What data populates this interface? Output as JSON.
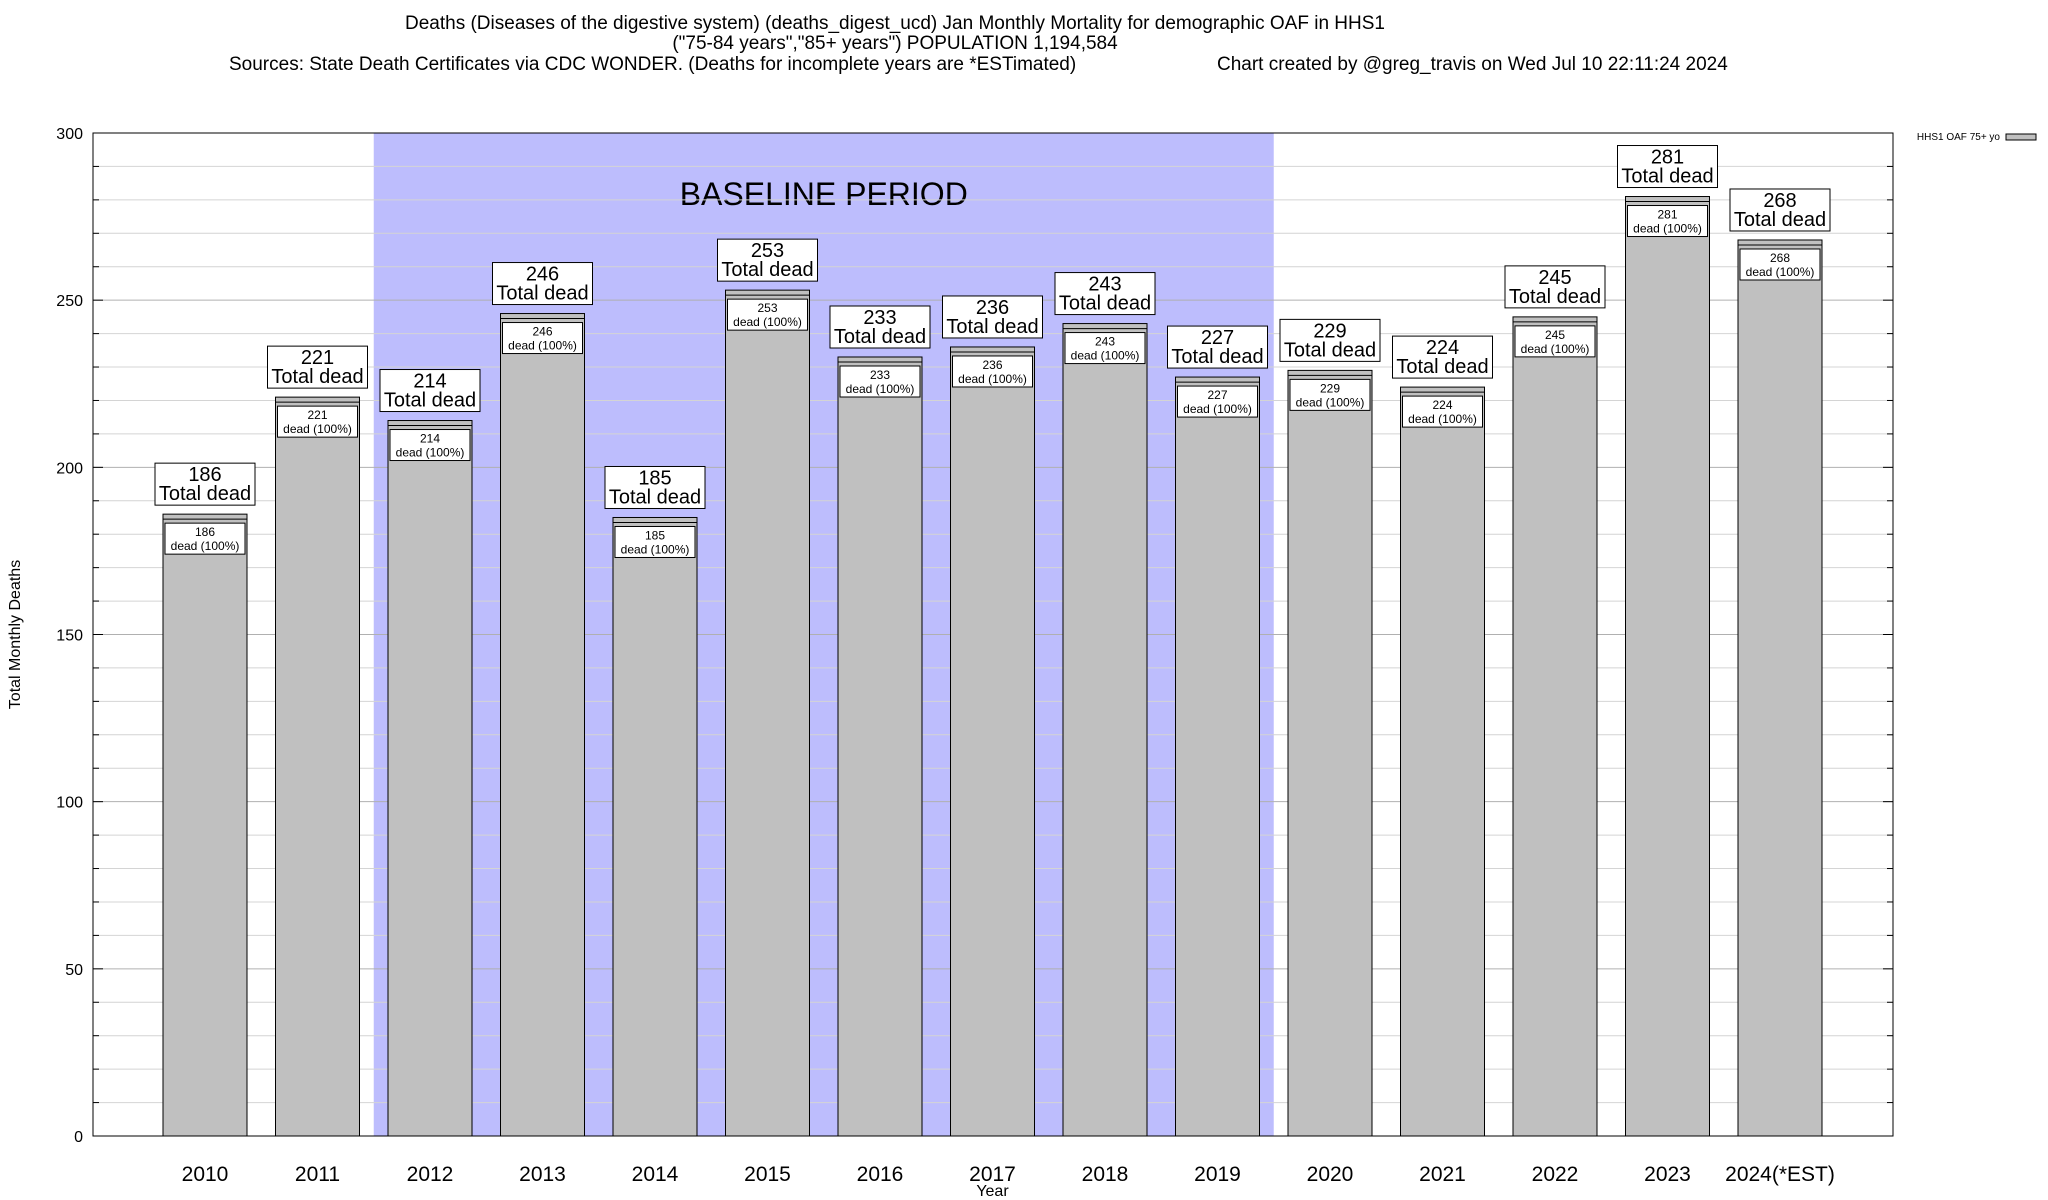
{
  "chart_data": {
    "type": "bar",
    "title": "Deaths (Diseases of the digestive system) (deaths_digest_ucd) Jan Monthly Mortality for demographic OAF in HHS1",
    "subtitle": "(\"75-84 years\",\"85+ years\") POPULATION 1,194,584",
    "sources": "Sources: State Death Certificates via CDC WONDER. (Deaths for incomplete years are *ESTimated)",
    "credit": "Chart created by @greg_travis on Wed Jul 10 22:11:24 2024",
    "xlabel": "Year",
    "ylabel": "Total Monthly Deaths",
    "ylim": [
      0,
      300
    ],
    "yticks": [
      0,
      50,
      100,
      150,
      200,
      250,
      300
    ],
    "grid": true,
    "legend": {
      "position": "top-right",
      "label": "HHS1 OAF 75+ yo"
    },
    "baseline": {
      "label": "BASELINE PERIOD",
      "from": "2012",
      "to": "2019",
      "color": "#bdbdfd"
    },
    "bar_color": "#c0c0c0",
    "categories": [
      "2010",
      "2011",
      "2012",
      "2013",
      "2014",
      "2015",
      "2016",
      "2017",
      "2018",
      "2019",
      "2020",
      "2021",
      "2022",
      "2023",
      "2024(*EST)"
    ],
    "series": [
      {
        "name": "HHS1 OAF 75+ yo",
        "values": [
          186,
          221,
          214,
          246,
          185,
          253,
          233,
          236,
          243,
          227,
          229,
          224,
          245,
          281,
          268
        ]
      }
    ],
    "total_label_suffix": "Total dead",
    "inner_label_suffix": "dead (100%)"
  }
}
